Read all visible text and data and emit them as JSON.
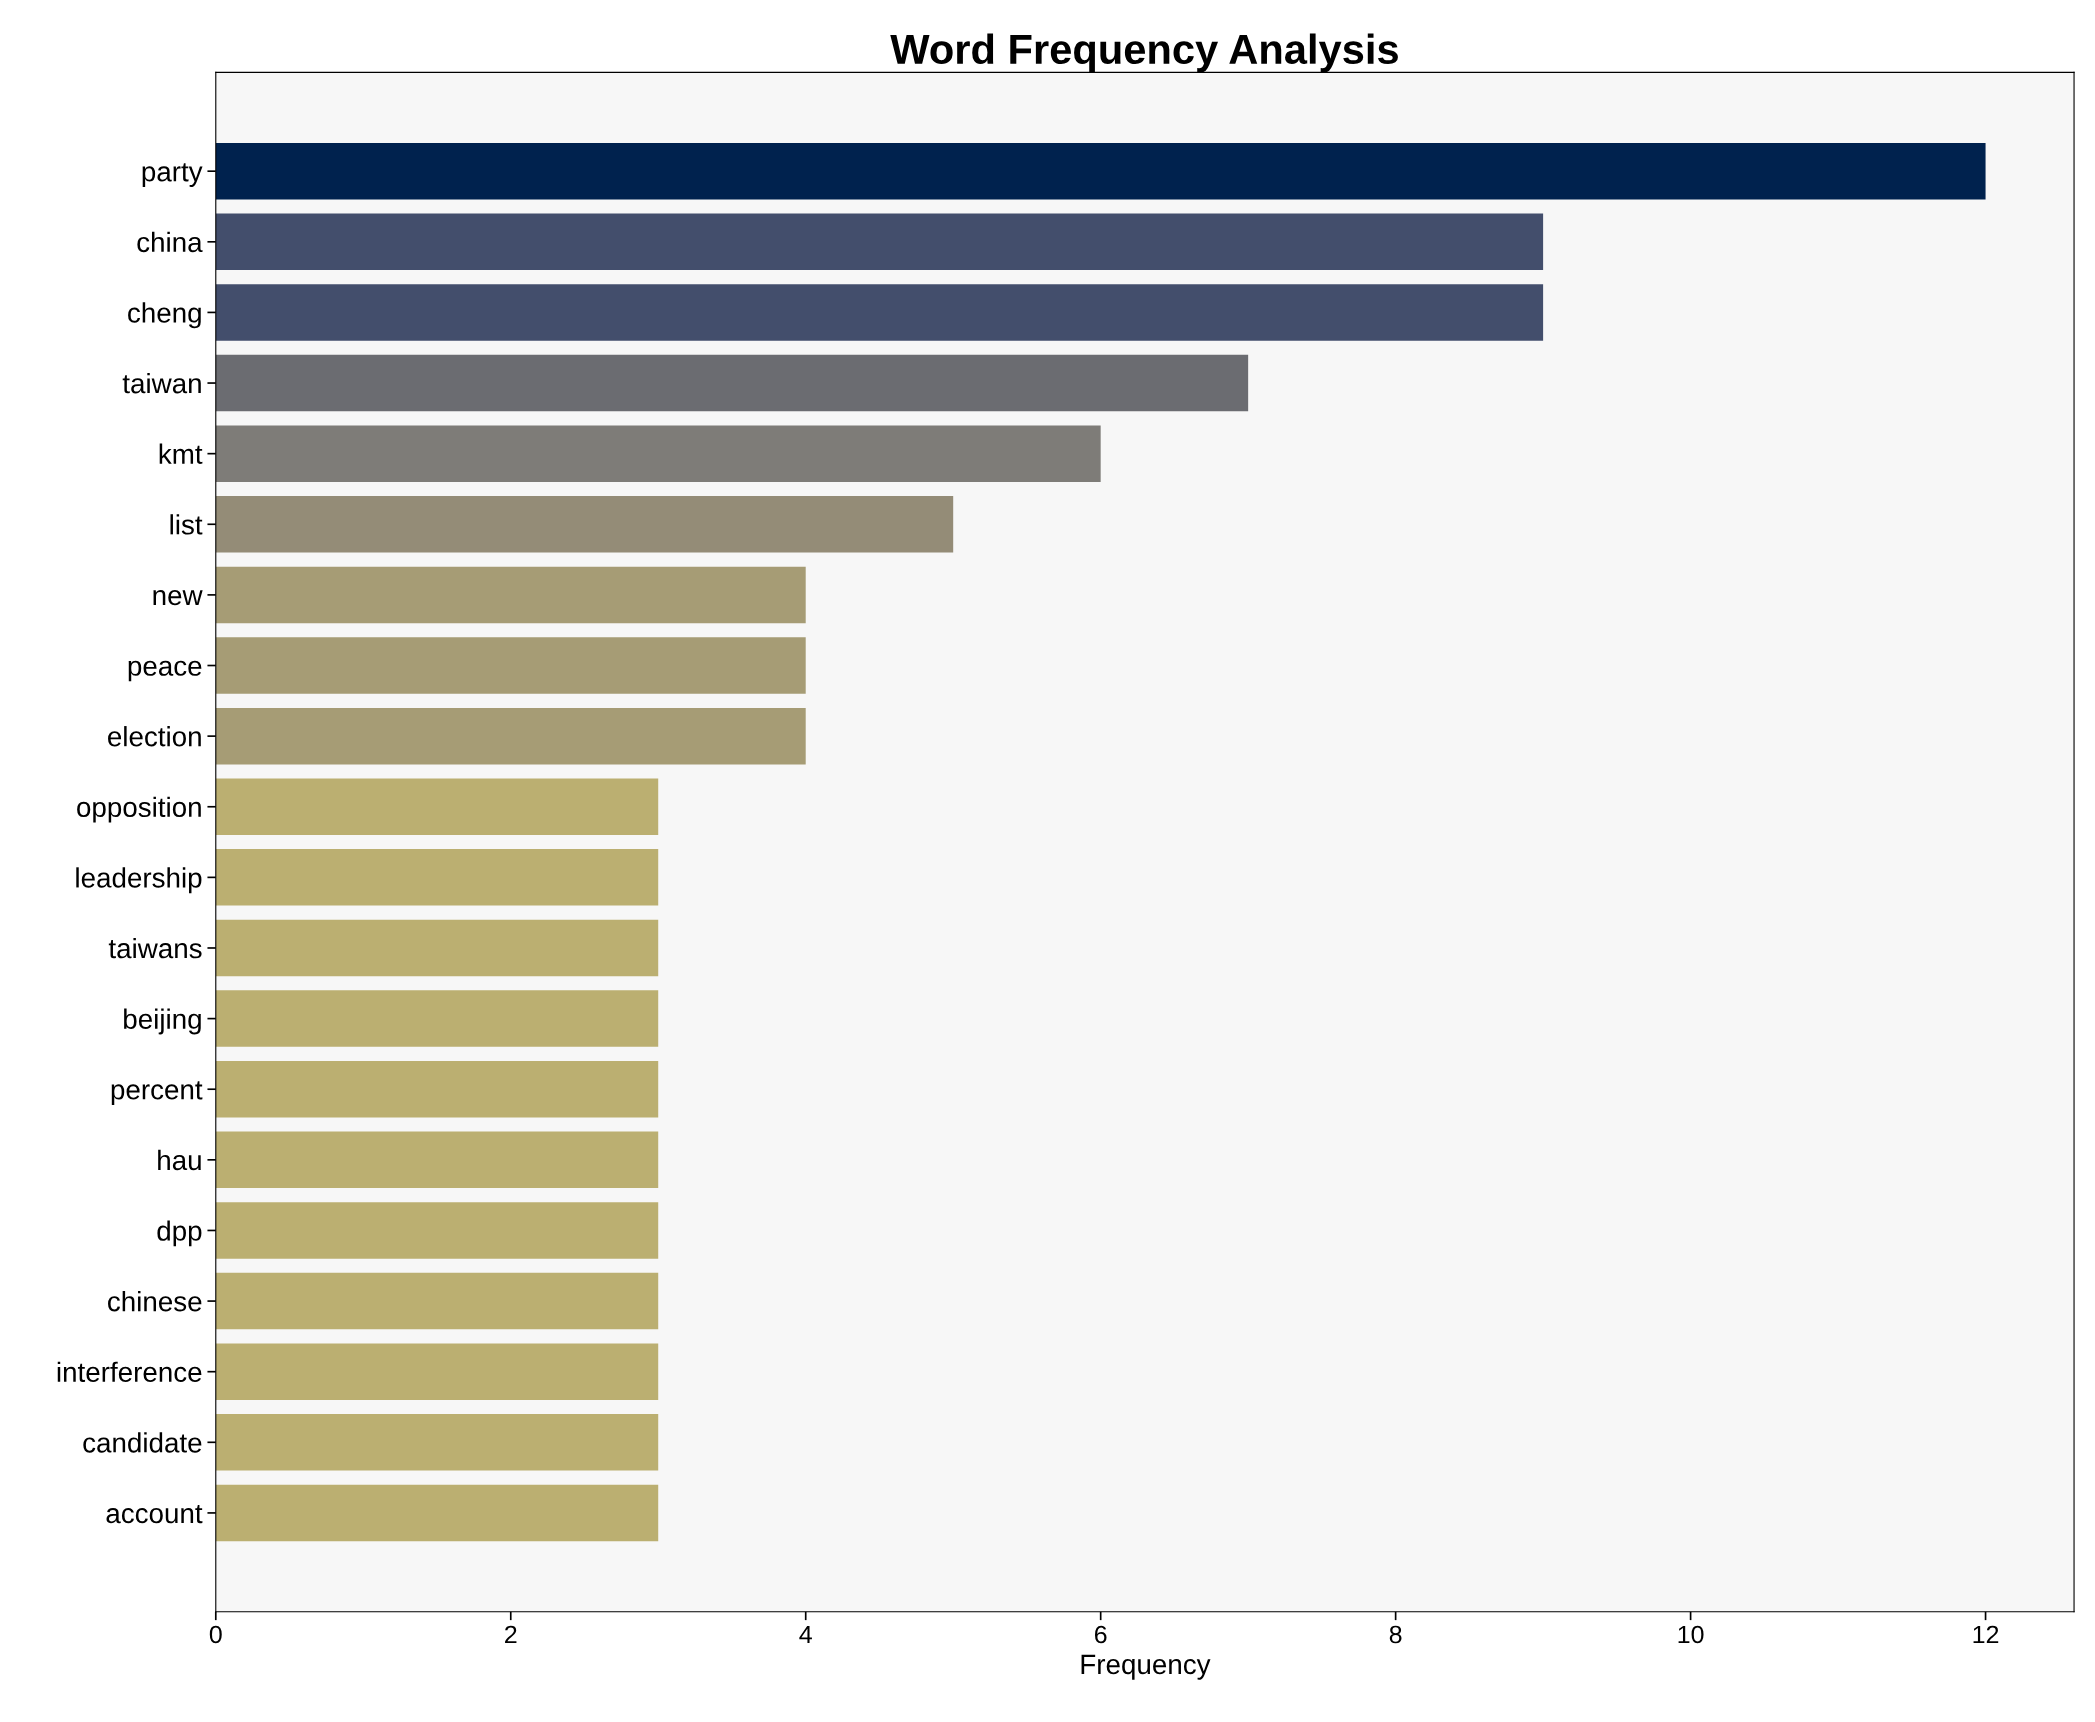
{
  "chart_data": {
    "type": "bar",
    "orientation": "horizontal",
    "title": "Word Frequency Analysis",
    "xlabel": "Frequency",
    "categories": [
      "party",
      "china",
      "cheng",
      "taiwan",
      "kmt",
      "list",
      "new",
      "peace",
      "election",
      "opposition",
      "leadership",
      "taiwans",
      "beijing",
      "percent",
      "hau",
      "dpp",
      "chinese",
      "interference",
      "candidate",
      "account"
    ],
    "values": [
      12,
      9,
      9,
      7,
      6,
      5,
      4,
      4,
      4,
      3,
      3,
      3,
      3,
      3,
      3,
      3,
      3,
      3,
      3,
      3
    ],
    "colors": [
      "#00224e",
      "#434e6c",
      "#434e6c",
      "#6b6c71",
      "#7e7c78",
      "#948c77",
      "#a69c75",
      "#a69c75",
      "#a69c75",
      "#bbaf71",
      "#bbaf71",
      "#bbaf71",
      "#bbaf71",
      "#bbaf71",
      "#bbaf71",
      "#bbaf71",
      "#bbaf71",
      "#bbaf71",
      "#bbaf71",
      "#bbaf71"
    ],
    "xlim": [
      0,
      12.6
    ],
    "xticks": [
      0,
      2,
      4,
      6,
      8,
      10,
      12
    ],
    "grid": false,
    "legend": false
  }
}
